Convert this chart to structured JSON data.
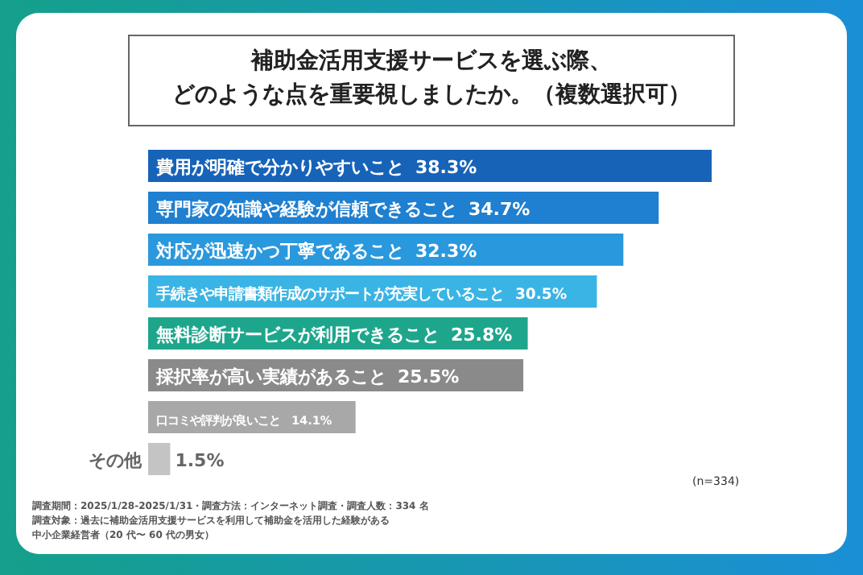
{
  "chart_data": {
    "type": "bar",
    "orientation": "horizontal",
    "title": "補助金活用支援サービスを選ぶ際、どのような点を重要視しましたか。（複数選択可）",
    "categories": [
      "費用が明確で分かりやすいこと",
      "専門家の知識や経験が信頼できること",
      "対応が迅速かつ丁寧であること",
      "手続きや申請書類作成のサポートが充実していること",
      "無料診断サービスが利用できること",
      "採択率が高い実績があること",
      "口コミや評判が良いこと",
      "その他"
    ],
    "values": [
      38.3,
      34.7,
      32.3,
      30.5,
      25.8,
      25.5,
      14.1,
      1.5
    ],
    "value_labels": [
      "38.3%",
      "34.7%",
      "32.3%",
      "30.5%",
      "25.8%",
      "25.5%",
      "14.1%",
      "1.5%"
    ],
    "colors": [
      "#1763b8",
      "#1f7fd0",
      "#2a98dd",
      "#3ab4e4",
      "#1ea68c",
      "#8a8a8a",
      "#a8a8a8",
      "#c4c4c4"
    ],
    "annotations": [
      "(n=334)",
      "調査期間：2025/1/28-2025/1/31・調査方法：インターネット調査・調査人数：334 名",
      "調査対象：過去に補助金活用支援サービスを利用して補助金を活用した経験がある",
      "中小企業経営者（20 代〜 60 代の男女）"
    ]
  }
}
